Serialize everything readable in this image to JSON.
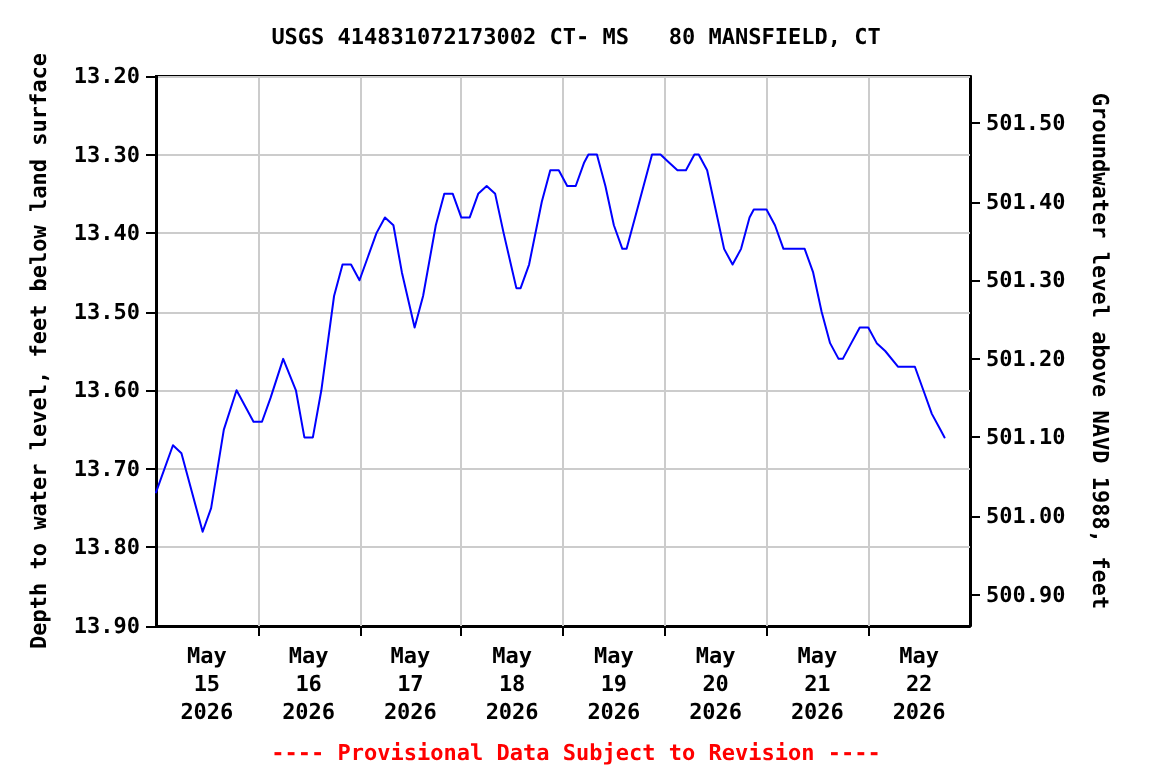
{
  "chart_data": {
    "type": "line",
    "title": "USGS 414831072173002 CT- MS   80 MANSFIELD, CT",
    "ylabel": "Depth to water level, feet below land surface",
    "y2label": "Groundwater level above NAVD 1988, feet",
    "annotations": [
      "---- Provisional Data Subject to Revision ----"
    ],
    "x": [
      "2026-05-15T00:00",
      "2026-05-15T04:00",
      "2026-05-15T06:00",
      "2026-05-15T11:00",
      "2026-05-15T13:00",
      "2026-05-15T16:00",
      "2026-05-15T19:00",
      "2026-05-15T21:00",
      "2026-05-15T23:00",
      "2026-05-16T01:00",
      "2026-05-16T03:00",
      "2026-05-16T06:00",
      "2026-05-16T09:00",
      "2026-05-16T11:00",
      "2026-05-16T13:00",
      "2026-05-16T15:00",
      "2026-05-16T18:00",
      "2026-05-16T20:00",
      "2026-05-16T22:00",
      "2026-05-17T00:00",
      "2026-05-17T02:00",
      "2026-05-17T04:00",
      "2026-05-17T06:00",
      "2026-05-17T08:00",
      "2026-05-17T10:00",
      "2026-05-17T13:00",
      "2026-05-17T15:00",
      "2026-05-17T18:00",
      "2026-05-17T20:00",
      "2026-05-17T22:00",
      "2026-05-18T00:00",
      "2026-05-18T02:00",
      "2026-05-18T04:00",
      "2026-05-18T06:00",
      "2026-05-18T08:00",
      "2026-05-18T10:00",
      "2026-05-18T13:00",
      "2026-05-18T14:00",
      "2026-05-18T16:00",
      "2026-05-18T19:00",
      "2026-05-18T21:00",
      "2026-05-18T23:00",
      "2026-05-19T01:00",
      "2026-05-19T03:00",
      "2026-05-19T05:00",
      "2026-05-19T06:00",
      "2026-05-19T08:00",
      "2026-05-19T10:00",
      "2026-05-19T12:00",
      "2026-05-19T14:00",
      "2026-05-19T15:00",
      "2026-05-19T17:00",
      "2026-05-19T19:00",
      "2026-05-19T21:00",
      "2026-05-19T23:00",
      "2026-05-20T01:00",
      "2026-05-20T03:00",
      "2026-05-20T05:00",
      "2026-05-20T07:00",
      "2026-05-20T08:00",
      "2026-05-20T10:00",
      "2026-05-20T12:00",
      "2026-05-20T14:00",
      "2026-05-20T16:00",
      "2026-05-20T18:00",
      "2026-05-20T20:00",
      "2026-05-20T21:00",
      "2026-05-21T00:00",
      "2026-05-21T02:00",
      "2026-05-21T04:00",
      "2026-05-21T09:00",
      "2026-05-21T11:00",
      "2026-05-21T13:00",
      "2026-05-21T15:00",
      "2026-05-21T17:00",
      "2026-05-21T18:00",
      "2026-05-21T20:00",
      "2026-05-21T22:00",
      "2026-05-22T00:00",
      "2026-05-22T02:00",
      "2026-05-22T04:00",
      "2026-05-22T07:00",
      "2026-05-22T11:00",
      "2026-05-22T13:00",
      "2026-05-22T15:00",
      "2026-05-22T17:00",
      "2026-05-22T18:00"
    ],
    "series": [
      {
        "color": "#0000ff",
        "values": [
          13.73,
          13.67,
          13.68,
          13.78,
          13.75,
          13.65,
          13.6,
          13.62,
          13.64,
          13.64,
          13.61,
          13.56,
          13.6,
          13.66,
          13.66,
          13.6,
          13.48,
          13.44,
          13.44,
          13.46,
          13.43,
          13.4,
          13.38,
          13.39,
          13.45,
          13.52,
          13.48,
          13.39,
          13.35,
          13.35,
          13.38,
          13.38,
          13.35,
          13.34,
          13.35,
          13.4,
          13.47,
          13.47,
          13.44,
          13.36,
          13.32,
          13.32,
          13.34,
          13.34,
          13.31,
          13.3,
          13.3,
          13.34,
          13.39,
          13.42,
          13.42,
          13.38,
          13.34,
          13.3,
          13.3,
          13.31,
          13.32,
          13.32,
          13.3,
          13.3,
          13.32,
          13.37,
          13.42,
          13.44,
          13.42,
          13.38,
          13.37,
          13.37,
          13.39,
          13.42,
          13.42,
          13.45,
          13.5,
          13.54,
          13.56,
          13.56,
          13.54,
          13.52,
          13.52,
          13.54,
          13.55,
          13.57,
          13.57,
          13.6,
          13.63,
          13.65,
          13.66
        ]
      }
    ],
    "xlim": [
      "2026-05-15T00:00",
      "2026-05-23T00:00"
    ],
    "xticks": [
      {
        "value": "2026-05-15T12:00",
        "label": "May\n15\n2026"
      },
      {
        "value": "2026-05-16T12:00",
        "label": "May\n16\n2026"
      },
      {
        "value": "2026-05-17T12:00",
        "label": "May\n17\n2026"
      },
      {
        "value": "2026-05-18T12:00",
        "label": "May\n18\n2026"
      },
      {
        "value": "2026-05-19T12:00",
        "label": "May\n19\n2026"
      },
      {
        "value": "2026-05-20T12:00",
        "label": "May\n20\n2026"
      },
      {
        "value": "2026-05-21T12:00",
        "label": "May\n21\n2026"
      },
      {
        "value": "2026-05-22T12:00",
        "label": "May\n22\n2026"
      },
      {
        "value": "2026-05-16T00:00",
        "label": null
      },
      {
        "value": "2026-05-17T00:00",
        "label": null
      },
      {
        "value": "2026-05-18T00:00",
        "label": null
      },
      {
        "value": "2026-05-19T00:00",
        "label": null
      },
      {
        "value": "2026-05-20T00:00",
        "label": null
      },
      {
        "value": "2026-05-21T00:00",
        "label": null
      },
      {
        "value": "2026-05-22T00:00",
        "label": null
      }
    ],
    "ylim": [
      13.9,
      13.2
    ],
    "yticks": [
      {
        "value": 13.2,
        "label": "13.20"
      },
      {
        "value": 13.3,
        "label": "13.30"
      },
      {
        "value": 13.4,
        "label": "13.40"
      },
      {
        "value": 13.5,
        "label": "13.50"
      },
      {
        "value": 13.6,
        "label": "13.60"
      },
      {
        "value": 13.7,
        "label": "13.70"
      },
      {
        "value": 13.8,
        "label": "13.80"
      },
      {
        "value": 13.9,
        "label": "13.90"
      }
    ],
    "y2lim": [
      500.86,
      501.56
    ],
    "y2ticks": [
      {
        "value": 500.9,
        "label": "500.90"
      },
      {
        "value": 501.0,
        "label": "501.00"
      },
      {
        "value": 501.1,
        "label": "501.10"
      },
      {
        "value": 501.2,
        "label": "501.20"
      },
      {
        "value": 501.3,
        "label": "501.30"
      },
      {
        "value": 501.4,
        "label": "501.40"
      },
      {
        "value": 501.5,
        "label": "501.50"
      }
    ],
    "grid": true,
    "marker": "none",
    "line_style": "solid"
  }
}
